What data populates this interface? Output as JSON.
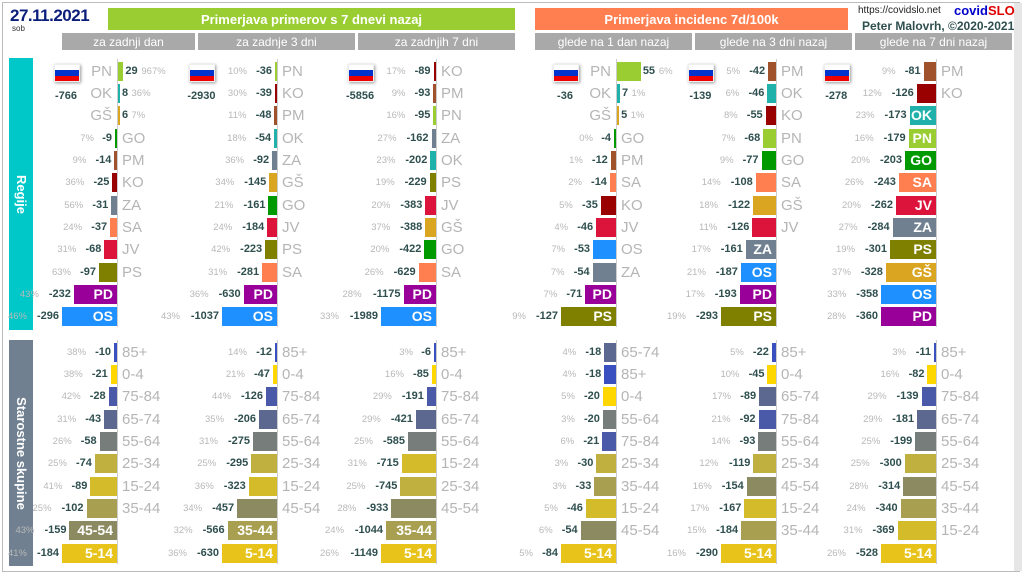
{
  "header": {
    "date": "27.11.2021",
    "weekday": "sob",
    "banner_left": "Primerjava primerov s 7 dnevi nazaj",
    "banner_right": "Primerjava incidenc 7d/100k",
    "url": "https://covidslo.net",
    "brand_a": "covid",
    "brand_b": "SLO",
    "author": "Peter Malovrh, ©2020-2021",
    "subheaders": [
      "za zadnji dan",
      "za zadnje 3 dni",
      "za zadnjih 7 dni",
      "glede na 1 dan nazaj",
      "glede na 3 dni nazaj",
      "glede na 7 dni nazaj"
    ]
  },
  "colors": {
    "banner_left": "#9acd32",
    "banner_right": "#ff7f50",
    "regions_side": "#00c8c8",
    "ages_side": "#708090",
    "PN": "#9acd32",
    "OK": "#20b2aa",
    "GŠ": "#daa520",
    "GO": "#009900",
    "PM": "#a0522d",
    "KO": "#990000",
    "ZA": "#708090",
    "SA": "#ff7f50",
    "JV": "#dc143c",
    "PS": "#808000",
    "PD": "#990099",
    "OS": "#1e90ff",
    "85+": "#3a4fc0",
    "0-4": "#ffd700",
    "75-84": "#4a5aa8",
    "65-74": "#5c6890",
    "55-64": "#777d7a",
    "25-34": "#c0b040",
    "15-24": "#d4bb2a",
    "35-44": "#a8a050",
    "45-54": "#8c8a60",
    "5-14": "#e8c41a"
  },
  "side_labels": {
    "regions": "Regije",
    "ages": "Starostne skupine"
  },
  "chart_data": [
    {
      "type": "bar",
      "orientation": "horizontal",
      "group": "regions",
      "panel": "za zadnji dan",
      "total": "-766",
      "rows": [
        [
          "PN",
          29,
          "967%"
        ],
        [
          "OK",
          8,
          "36%"
        ],
        [
          "GŠ",
          6,
          "7%"
        ],
        [
          "GO",
          -9,
          "7%"
        ],
        [
          "PM",
          -14,
          "9%"
        ],
        [
          "KO",
          -25,
          "36%"
        ],
        [
          "ZA",
          -31,
          "56%"
        ],
        [
          "SA",
          -37,
          "24%"
        ],
        [
          "JV",
          -68,
          "31%"
        ],
        [
          "PS",
          -97,
          "63%"
        ],
        [
          "PD",
          -232,
          "43%"
        ],
        [
          "OS",
          -296,
          "46%"
        ]
      ]
    },
    {
      "type": "bar",
      "orientation": "horizontal",
      "group": "regions",
      "panel": "za zadnje 3 dni",
      "total": "-2930",
      "rows": [
        [
          "PN",
          -36,
          "10%"
        ],
        [
          "KO",
          -39,
          "30%"
        ],
        [
          "PM",
          -48,
          "11%"
        ],
        [
          "OK",
          -54,
          "18%"
        ],
        [
          "ZA",
          -92,
          "36%"
        ],
        [
          "GŠ",
          -145,
          "34%"
        ],
        [
          "GO",
          -161,
          "21%"
        ],
        [
          "JV",
          -184,
          "24%"
        ],
        [
          "PS",
          -223,
          "42%"
        ],
        [
          "SA",
          -281,
          "31%"
        ],
        [
          "PD",
          -630,
          "36%"
        ],
        [
          "OS",
          -1037,
          "43%"
        ]
      ]
    },
    {
      "type": "bar",
      "orientation": "horizontal",
      "group": "regions",
      "panel": "za zadnjih 7 dni",
      "total": "-5856",
      "rows": [
        [
          "KO",
          -89,
          "17%"
        ],
        [
          "PM",
          -93,
          "9%"
        ],
        [
          "PN",
          -95,
          "16%"
        ],
        [
          "ZA",
          -162,
          "27%"
        ],
        [
          "OK",
          -202,
          "23%"
        ],
        [
          "PS",
          -229,
          "19%"
        ],
        [
          "JV",
          -383,
          "20%"
        ],
        [
          "GŠ",
          -388,
          "37%"
        ],
        [
          "GO",
          -422,
          "20%"
        ],
        [
          "SA",
          -629,
          "26%"
        ],
        [
          "PD",
          -1175,
          "28%"
        ],
        [
          "OS",
          -1989,
          "33%"
        ]
      ]
    },
    {
      "type": "bar",
      "orientation": "horizontal",
      "group": "regions",
      "panel": "glede na 1 dan nazaj",
      "total": "-36",
      "rows": [
        [
          "PN",
          55,
          "6%"
        ],
        [
          "OK",
          7,
          "1%"
        ],
        [
          "GŠ",
          5,
          "1%"
        ],
        [
          "GO",
          -4,
          "0%"
        ],
        [
          "PM",
          -12,
          "1%"
        ],
        [
          "SA",
          -14,
          "2%"
        ],
        [
          "KO",
          -35,
          "5%"
        ],
        [
          "JV",
          -46,
          "4%"
        ],
        [
          "OS",
          -53,
          "7%"
        ],
        [
          "ZA",
          -54,
          "7%"
        ],
        [
          "PD",
          -71,
          "7%"
        ],
        [
          "PS",
          -127,
          "9%"
        ]
      ]
    },
    {
      "type": "bar",
      "orientation": "horizontal",
      "group": "regions",
      "panel": "glede na 3 dni nazaj",
      "total": "-139",
      "rows": [
        [
          "PM",
          -42,
          "5%"
        ],
        [
          "OK",
          -46,
          "6%"
        ],
        [
          "KO",
          -55,
          "8%"
        ],
        [
          "PN",
          -68,
          "7%"
        ],
        [
          "GO",
          -77,
          "9%"
        ],
        [
          "SA",
          -108,
          "14%"
        ],
        [
          "GŠ",
          -122,
          "18%"
        ],
        [
          "JV",
          -126,
          "11%"
        ],
        [
          "ZA",
          -161,
          "17%"
        ],
        [
          "OS",
          -187,
          "21%"
        ],
        [
          "PD",
          -193,
          "17%"
        ],
        [
          "PS",
          -293,
          "19%"
        ]
      ]
    },
    {
      "type": "bar",
      "orientation": "horizontal",
      "group": "regions",
      "panel": "glede na 7 dni nazaj",
      "total": "-278",
      "rows": [
        [
          "PM",
          -81,
          "9%"
        ],
        [
          "KO",
          -126,
          "12%"
        ],
        [
          "OK",
          -173,
          "23%"
        ],
        [
          "PN",
          -179,
          "16%"
        ],
        [
          "GO",
          -203,
          "20%"
        ],
        [
          "SA",
          -243,
          "26%"
        ],
        [
          "JV",
          -262,
          "20%"
        ],
        [
          "ZA",
          -284,
          "27%"
        ],
        [
          "PS",
          -301,
          "19%"
        ],
        [
          "GŠ",
          -328,
          "37%"
        ],
        [
          "OS",
          -358,
          "33%"
        ],
        [
          "PD",
          -360,
          "28%"
        ]
      ]
    },
    {
      "type": "bar",
      "orientation": "horizontal",
      "group": "ages",
      "panel": "za zadnji dan",
      "rows": [
        [
          "85+",
          -10,
          "38%"
        ],
        [
          "0-4",
          -21,
          "38%"
        ],
        [
          "75-84",
          -28,
          "42%"
        ],
        [
          "65-74",
          -43,
          "31%"
        ],
        [
          "55-64",
          -58,
          "26%"
        ],
        [
          "25-34",
          -74,
          "25%"
        ],
        [
          "15-24",
          -89,
          "41%"
        ],
        [
          "35-44",
          -102,
          "25%"
        ],
        [
          "45-54",
          -159,
          "43%"
        ],
        [
          "5-14",
          -184,
          "41%"
        ]
      ]
    },
    {
      "type": "bar",
      "orientation": "horizontal",
      "group": "ages",
      "panel": "za zadnje 3 dni",
      "rows": [
        [
          "85+",
          -12,
          "14%"
        ],
        [
          "0-4",
          -47,
          "21%"
        ],
        [
          "75-84",
          -126,
          "44%"
        ],
        [
          "65-74",
          -206,
          "35%"
        ],
        [
          "55-64",
          -275,
          "31%"
        ],
        [
          "25-34",
          -295,
          "25%"
        ],
        [
          "15-24",
          -323,
          "36%"
        ],
        [
          "45-54",
          -457,
          "34%"
        ],
        [
          "35-44",
          -566,
          "32%"
        ],
        [
          "5-14",
          -630,
          "36%"
        ]
      ]
    },
    {
      "type": "bar",
      "orientation": "horizontal",
      "group": "ages",
      "panel": "za zadnjih 7 dni",
      "rows": [
        [
          "85+",
          -6,
          "3%"
        ],
        [
          "0-4",
          -85,
          "16%"
        ],
        [
          "75-84",
          -191,
          "29%"
        ],
        [
          "65-74",
          -421,
          "29%"
        ],
        [
          "55-64",
          -585,
          "25%"
        ],
        [
          "15-24",
          -715,
          "31%"
        ],
        [
          "25-34",
          -745,
          "25%"
        ],
        [
          "45-54",
          -933,
          "28%"
        ],
        [
          "35-44",
          -1044,
          "24%"
        ],
        [
          "5-14",
          -1149,
          "26%"
        ]
      ]
    },
    {
      "type": "bar",
      "orientation": "horizontal",
      "group": "ages",
      "panel": "glede na 1 dan nazaj",
      "rows": [
        [
          "65-74",
          -18,
          "4%"
        ],
        [
          "85+",
          -18,
          "4%"
        ],
        [
          "0-4",
          -20,
          "5%"
        ],
        [
          "55-64",
          -20,
          "3%"
        ],
        [
          "75-84",
          -21,
          "6%"
        ],
        [
          "25-34",
          -30,
          "3%"
        ],
        [
          "35-44",
          -33,
          "3%"
        ],
        [
          "15-24",
          -46,
          "5%"
        ],
        [
          "45-54",
          -54,
          "6%"
        ],
        [
          "5-14",
          -84,
          "5%"
        ]
      ]
    },
    {
      "type": "bar",
      "orientation": "horizontal",
      "group": "ages",
      "panel": "glede na 3 dni nazaj",
      "rows": [
        [
          "85+",
          -22,
          "5%"
        ],
        [
          "0-4",
          -45,
          "10%"
        ],
        [
          "65-74",
          -89,
          "17%"
        ],
        [
          "75-84",
          -92,
          "21%"
        ],
        [
          "55-64",
          -93,
          "14%"
        ],
        [
          "25-34",
          -119,
          "12%"
        ],
        [
          "45-54",
          -154,
          "16%"
        ],
        [
          "15-24",
          -167,
          "17%"
        ],
        [
          "35-44",
          -184,
          "15%"
        ],
        [
          "5-14",
          -290,
          "16%"
        ]
      ]
    },
    {
      "type": "bar",
      "orientation": "horizontal",
      "group": "ages",
      "panel": "glede na 7 dni nazaj",
      "rows": [
        [
          "85+",
          -11,
          "3%"
        ],
        [
          "0-4",
          -82,
          "16%"
        ],
        [
          "75-84",
          -139,
          "29%"
        ],
        [
          "65-74",
          -181,
          "29%"
        ],
        [
          "55-64",
          -199,
          "25%"
        ],
        [
          "25-34",
          -300,
          "25%"
        ],
        [
          "45-54",
          -314,
          "28%"
        ],
        [
          "35-44",
          -340,
          "24%"
        ],
        [
          "15-24",
          -369,
          "31%"
        ],
        [
          "5-14",
          -528,
          "26%"
        ]
      ]
    }
  ]
}
